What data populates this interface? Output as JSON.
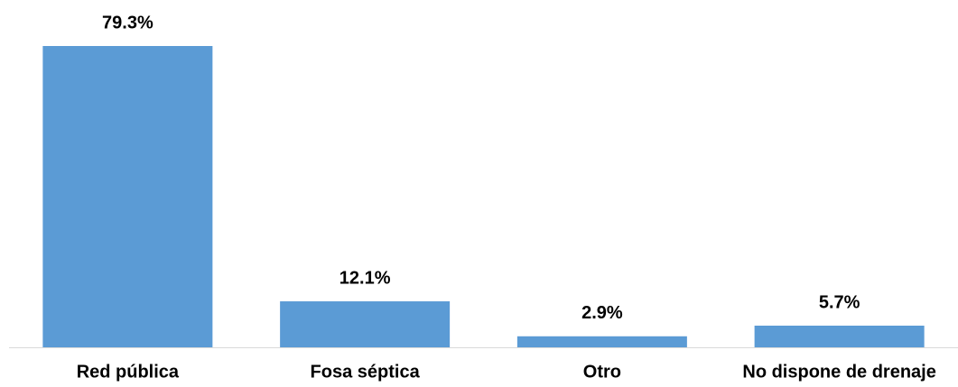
{
  "chart_data": {
    "type": "bar",
    "categories": [
      "Red pública",
      "Fosa séptica",
      "Otro",
      "No dispone de drenaje"
    ],
    "values": [
      79.3,
      12.1,
      2.9,
      5.7
    ],
    "value_labels": [
      "79.3%",
      "12.1%",
      "2.9%",
      "5.7%"
    ],
    "color": "#5b9bd5"
  }
}
